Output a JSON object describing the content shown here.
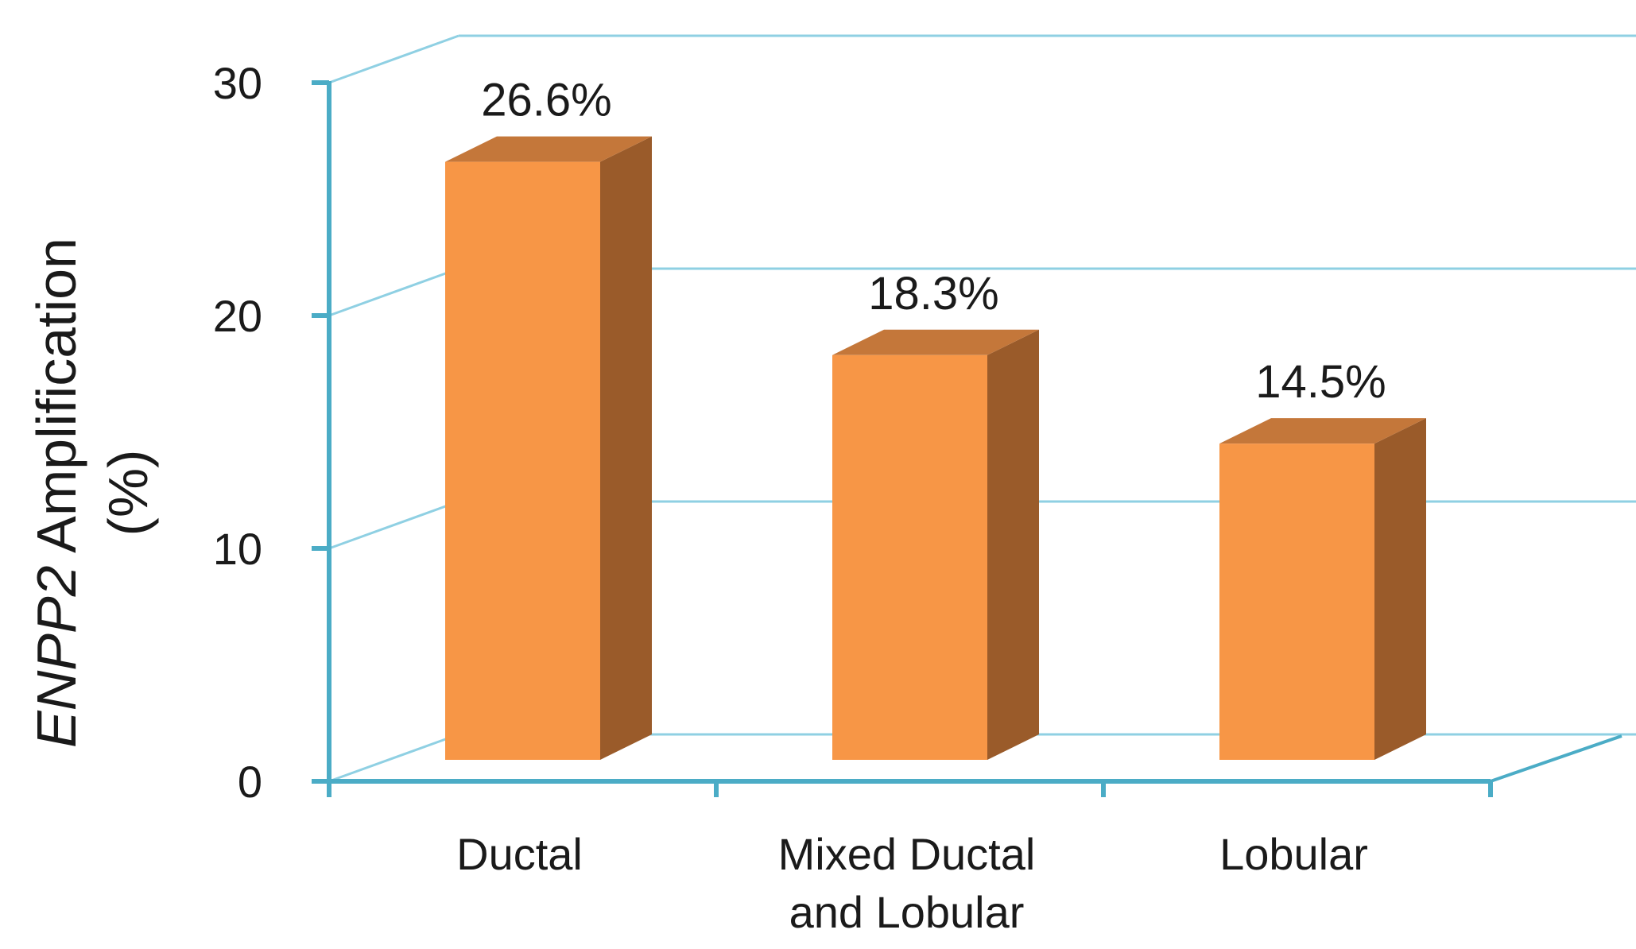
{
  "chart_data": {
    "type": "bar",
    "style": "3d-column",
    "categories": [
      "Ductal",
      "Mixed Ductal and Lobular",
      "Lobular"
    ],
    "category_lines": [
      [
        "Ductal"
      ],
      [
        "Mixed Ductal",
        "and Lobular"
      ],
      [
        "Lobular"
      ]
    ],
    "values": [
      26.6,
      18.3,
      14.5
    ],
    "data_labels": [
      "26.6%",
      "18.3%",
      "14.5%"
    ],
    "ylabel_gene": "ENPP2",
    "ylabel_rest": " Amplification",
    "ylabel_unit": "(%)",
    "ylim": [
      0,
      30
    ],
    "yticks": [
      0,
      10,
      20,
      30
    ],
    "yticklabels": [
      "0",
      "10",
      "20",
      "30"
    ],
    "grid": true,
    "colors": {
      "bar_front": "#f79646",
      "bar_side": "#9a5b2a",
      "bar_top": "#c4773a",
      "axis": "#4bacc6",
      "grid": "#8fd0e3"
    }
  }
}
